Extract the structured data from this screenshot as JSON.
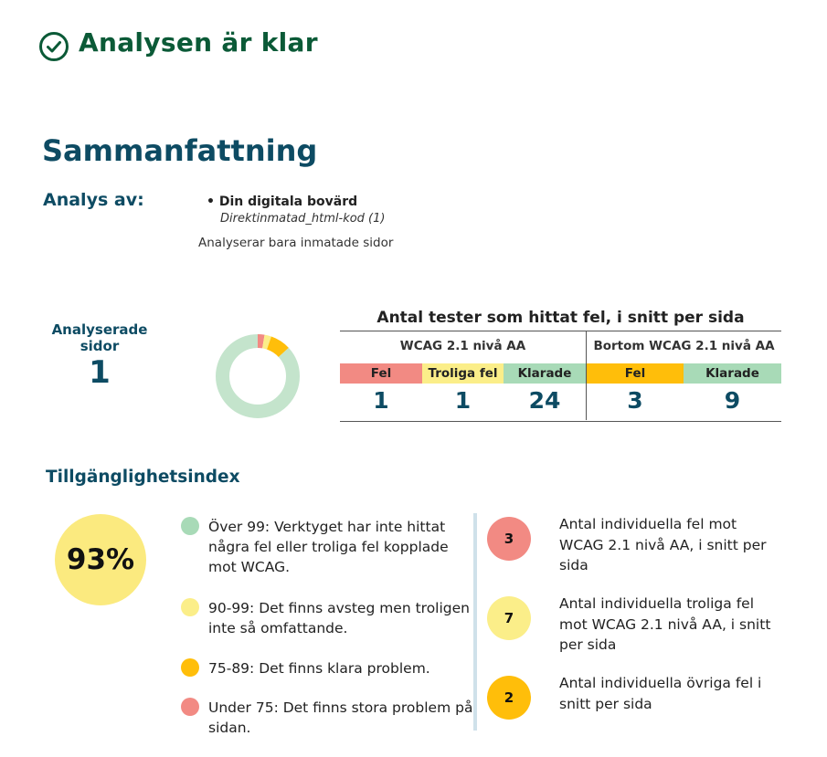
{
  "header": {
    "title": "Analysen är klar",
    "icon": "check-circle-icon"
  },
  "summary": {
    "title": "Sammanfattning",
    "analysis_label": "Analys av:",
    "site_name": "Din digitala bovärd",
    "site_source": "Direktinmatad_html-kod (1)",
    "note": "Analyserar bara inmatade sidor"
  },
  "pages": {
    "label_line1": "Analyserade",
    "label_line2": "sidor",
    "value": "1"
  },
  "tests": {
    "title": "Antal tester som hittat fel, i snitt per sida",
    "groups": [
      {
        "label": "WCAG 2.1 nivå AA",
        "columns": [
          {
            "label": "Fel",
            "value": "1",
            "color": "#f28a83"
          },
          {
            "label": "Troliga fel",
            "value": "1",
            "color": "#fbee89"
          },
          {
            "label": "Klarade",
            "value": "24",
            "color": "#a8dab7"
          }
        ]
      },
      {
        "label": "Bortom WCAG 2.1 nivå AA",
        "columns": [
          {
            "label": "Fel",
            "value": "3",
            "color": "#ffbe0a"
          },
          {
            "label": "Klarade",
            "value": "9",
            "color": "#a8dab7"
          }
        ]
      }
    ]
  },
  "donut": {
    "segments": [
      {
        "label": "Fel",
        "value": 1,
        "color": "#f28a83"
      },
      {
        "label": "Troliga fel",
        "value": 1,
        "color": "#fbee89"
      },
      {
        "label": "Bortom fel",
        "value": 3,
        "color": "#ffbe0a"
      },
      {
        "label": "Klarade",
        "value": 33,
        "color": "#c4e4cc"
      }
    ]
  },
  "index": {
    "title": "Tillgänglighetsindex",
    "value": "93%",
    "legend": [
      {
        "text": "Över 99: Verktyget har inte hittat några fel eller troliga fel kopplade mot WCAG.",
        "color": "#a8dab7"
      },
      {
        "text": "90-99: Det finns avsteg men troligen inte så omfattande.",
        "color": "#fbee89"
      },
      {
        "text": "75-89: Det finns klara problem.",
        "color": "#ffbe0a"
      },
      {
        "text": "Under 75: Det finns stora problem på sidan.",
        "color": "#f28a83"
      }
    ],
    "counts": [
      {
        "value": "3",
        "text": "Antal individuella fel mot WCAG 2.1 nivå AA, i snitt per sida",
        "color": "#f28a83"
      },
      {
        "value": "7",
        "text": "Antal individuella troliga fel mot WCAG 2.1 nivå AA, i snitt per sida",
        "color": "#fbee89"
      },
      {
        "value": "2",
        "text": "Antal individuella övriga fel i snitt per sida",
        "color": "#ffbe0a"
      }
    ]
  }
}
